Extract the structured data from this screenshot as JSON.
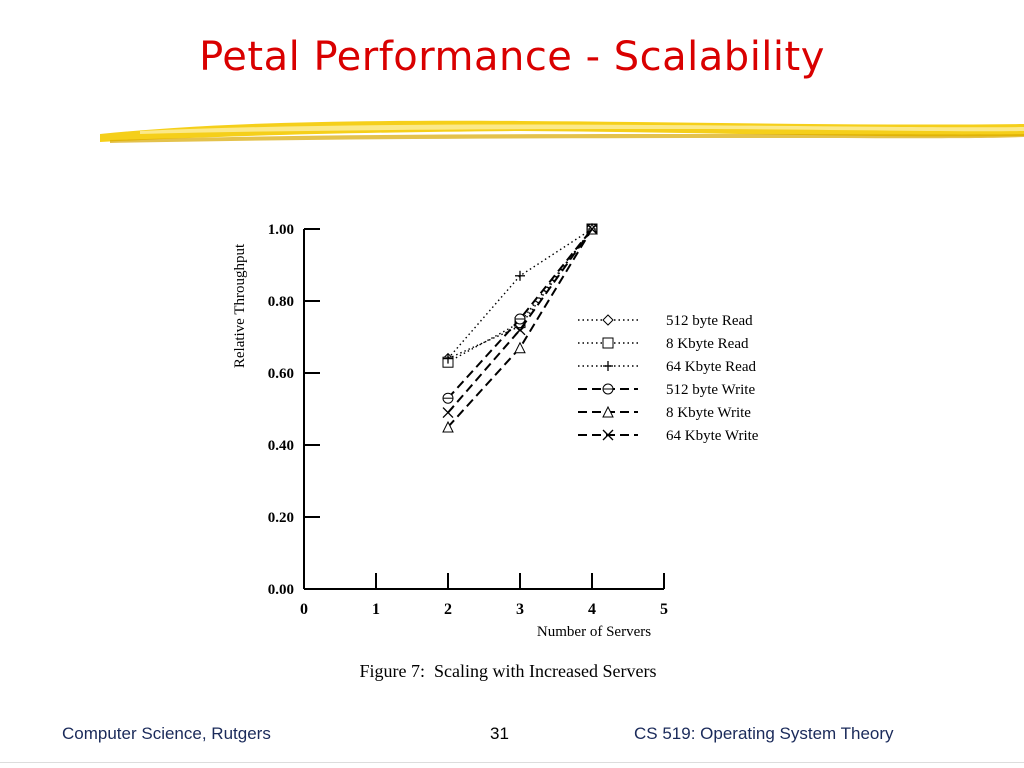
{
  "slide": {
    "title": "Petal Performance - Scalability",
    "footer_left": "Computer Science, Rutgers",
    "page_number": "31",
    "footer_right": "CS 519: Operating System Theory"
  },
  "colors": {
    "title": "#d90000",
    "underline": "#f5cf1a",
    "footer_text": "#1a2a5a"
  },
  "chart_data": {
    "type": "line",
    "caption": "Figure 7:  Scaling with Increased Servers",
    "xlabel": "Number of Servers",
    "ylabel": "Relative Throughput",
    "xlim": [
      0,
      5
    ],
    "ylim": [
      0,
      1.0
    ],
    "x_ticks": [
      "0",
      "1",
      "2",
      "3",
      "4",
      "5"
    ],
    "y_ticks": [
      "0.00",
      "0.20",
      "0.40",
      "0.60",
      "0.80",
      "1.00"
    ],
    "x": [
      2,
      3,
      4
    ],
    "legend_position": "right",
    "series": [
      {
        "name": "512 byte Read",
        "values": [
          0.64,
          0.73,
          1.0
        ],
        "style": "dotted",
        "marker": "diamond"
      },
      {
        "name": "8 Kbyte Read",
        "values": [
          0.63,
          0.74,
          1.0
        ],
        "style": "dotted",
        "marker": "square"
      },
      {
        "name": "64 Kbyte Read",
        "values": [
          0.64,
          0.87,
          1.0
        ],
        "style": "dotted",
        "marker": "plus"
      },
      {
        "name": "512 byte Write",
        "values": [
          0.53,
          0.75,
          1.0
        ],
        "style": "dashed",
        "marker": "circle"
      },
      {
        "name": "8 Kbyte Write",
        "values": [
          0.45,
          0.67,
          1.0
        ],
        "style": "dashed",
        "marker": "triangle"
      },
      {
        "name": "64 Kbyte Write",
        "values": [
          0.49,
          0.72,
          1.0
        ],
        "style": "dashed",
        "marker": "x"
      }
    ]
  }
}
